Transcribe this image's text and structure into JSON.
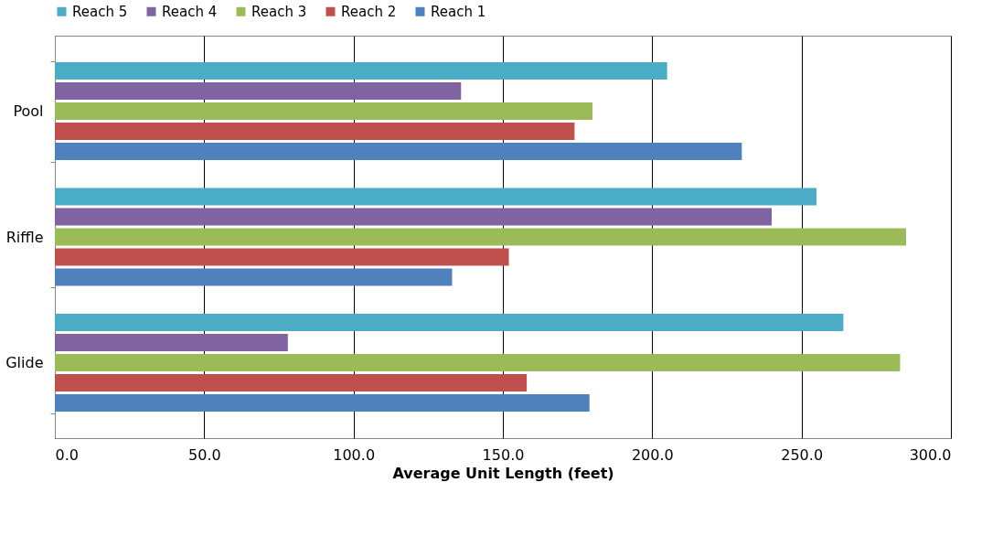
{
  "chart_data": {
    "type": "bar",
    "orientation": "horizontal",
    "xlabel": "Average Unit Length (feet)",
    "categories": [
      "Pool",
      "Riffle",
      "Glide"
    ],
    "series": [
      {
        "name": "Reach 5",
        "color": "#4bacc6",
        "values": [
          205,
          255,
          264
        ]
      },
      {
        "name": "Reach 4",
        "color": "#8064a2",
        "values": [
          136,
          240,
          78
        ]
      },
      {
        "name": "Reach 3",
        "color": "#9bbb59",
        "values": [
          180,
          285,
          283
        ]
      },
      {
        "name": "Reach 2",
        "color": "#c0504d",
        "values": [
          174,
          152,
          158
        ]
      },
      {
        "name": "Reach 1",
        "color": "#4f81bd",
        "values": [
          230,
          133,
          179
        ]
      }
    ],
    "xlim": [
      0,
      300
    ],
    "xticks": [
      {
        "value": 0,
        "label": "0.0"
      },
      {
        "value": 50,
        "label": "50.0"
      },
      {
        "value": 100,
        "label": "100.0"
      },
      {
        "value": 150,
        "label": "150.0"
      },
      {
        "value": 200,
        "label": "200.0"
      },
      {
        "value": 250,
        "label": "250.0"
      },
      {
        "value": 300,
        "label": "300.0"
      }
    ],
    "grid": "x",
    "legend": "top"
  }
}
